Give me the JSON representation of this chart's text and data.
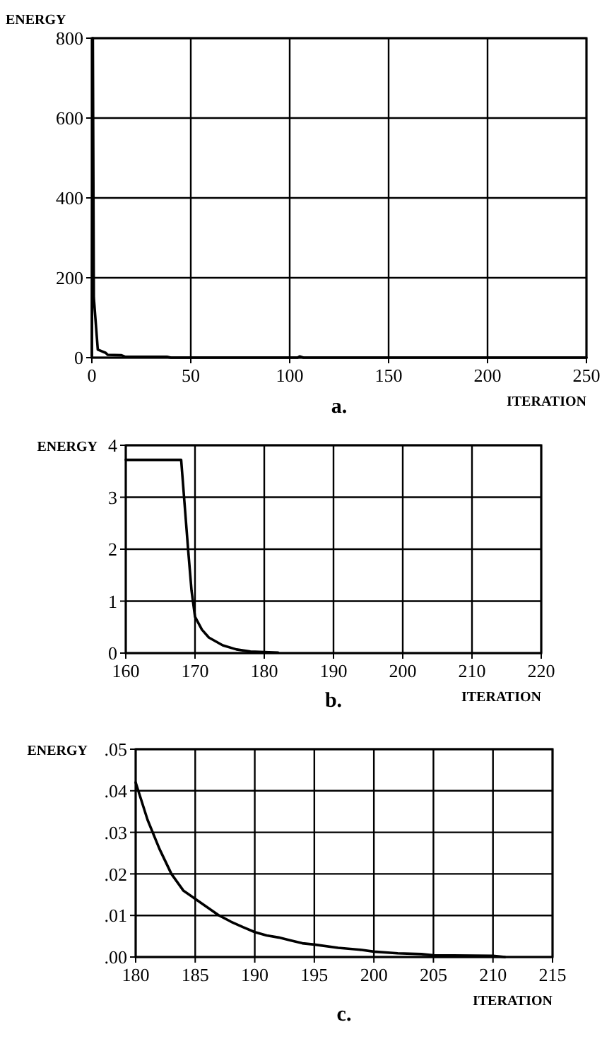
{
  "chart_data": [
    {
      "type": "line",
      "xlabel": "ITERATION",
      "ylabel": "ENERGY",
      "annotations": [
        "a."
      ],
      "xlim": [
        0,
        250
      ],
      "ylim": [
        0,
        800
      ],
      "xticks": [
        0,
        50,
        100,
        150,
        200,
        250
      ],
      "yticks": [
        0,
        200,
        400,
        600,
        800
      ],
      "grid": true,
      "series": [
        {
          "color": "#000000",
          "x": [
            0,
            0.5,
            1,
            3,
            7,
            8,
            15,
            17,
            38,
            40,
            104,
            105,
            107,
            250
          ],
          "values": [
            0,
            800,
            150,
            20,
            12,
            7,
            6,
            2,
            2,
            0,
            0,
            3,
            0,
            0
          ]
        }
      ]
    },
    {
      "type": "line",
      "xlabel": "ITERATION",
      "ylabel": "ENERGY",
      "annotations": [
        "b."
      ],
      "xlim": [
        160,
        220
      ],
      "ylim": [
        0,
        4
      ],
      "xticks": [
        160,
        170,
        180,
        190,
        200,
        210,
        220
      ],
      "yticks": [
        0,
        1,
        2,
        3,
        4
      ],
      "grid": true,
      "series": [
        {
          "color": "#000000",
          "x": [
            160,
            168,
            169,
            169.5,
            170,
            171,
            172,
            174,
            176,
            178,
            180,
            182
          ],
          "values": [
            3.72,
            3.72,
            2.0,
            1.2,
            0.7,
            0.45,
            0.3,
            0.15,
            0.07,
            0.03,
            0.02,
            0.01
          ]
        }
      ]
    },
    {
      "type": "line",
      "xlabel": "ITERATION",
      "ylabel": "ENERGY",
      "annotations": [
        "c."
      ],
      "xlim": [
        180,
        215
      ],
      "ylim": [
        0,
        0.05
      ],
      "xticks": [
        180,
        185,
        190,
        195,
        200,
        205,
        210,
        215
      ],
      "yticks": [
        {
          "value": 0,
          "label": ".00"
        },
        {
          "value": 0.01,
          "label": ".01"
        },
        {
          "value": 0.02,
          "label": ".02"
        },
        {
          "value": 0.03,
          "label": ".03"
        },
        {
          "value": 0.04,
          "label": ".04"
        },
        {
          "value": 0.05,
          "label": ".05"
        }
      ],
      "grid": true,
      "series": [
        {
          "color": "#000000",
          "x": [
            180,
            181,
            182,
            183,
            184,
            185,
            186,
            187,
            188,
            189,
            190,
            191,
            192,
            193,
            194,
            195,
            197,
            199,
            200,
            202,
            204,
            205,
            210,
            211
          ],
          "values": [
            0.042,
            0.033,
            0.026,
            0.02,
            0.016,
            0.014,
            0.012,
            0.01,
            0.0085,
            0.0072,
            0.006,
            0.0052,
            0.0047,
            0.004,
            0.0033,
            0.003,
            0.0022,
            0.0017,
            0.0013,
            0.0009,
            0.0007,
            0.0004,
            0.0003,
            0
          ]
        }
      ]
    }
  ]
}
